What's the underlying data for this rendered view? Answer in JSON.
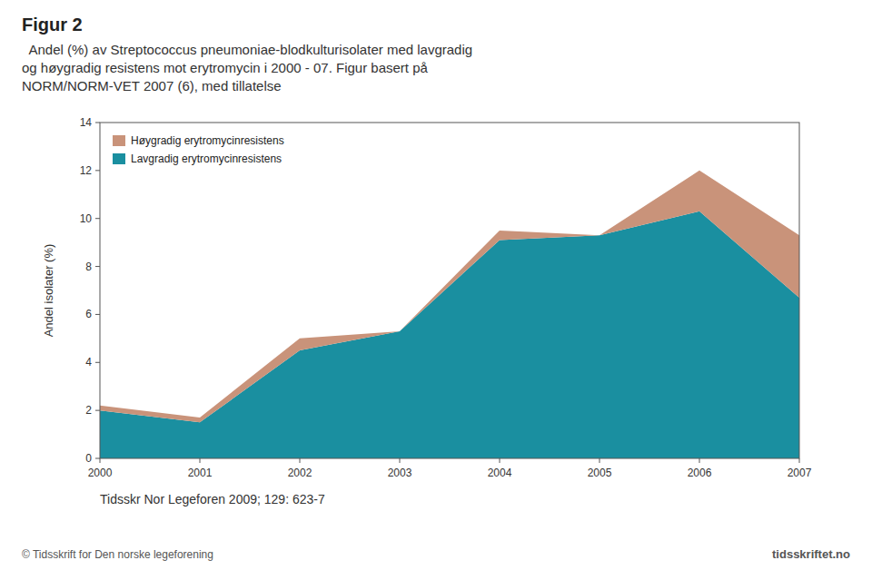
{
  "chart_data": {
    "type": "area",
    "stacked": true,
    "title": "Figur 2",
    "subtitle": [
      "  Andel (%) av Streptococcus pneumoniae-blodkulturisolater med lavgradig",
      "og høygradig resistens mot erytromycin i 2000 - 07. Figur basert på",
      "NORM/NORM-VET 2007 (6), med tillatelse"
    ],
    "y_label": "Andel isolater (%)",
    "x": [
      2000,
      2001,
      2002,
      2003,
      2004,
      2005,
      2006,
      2007
    ],
    "series": [
      {
        "name": "Lavgradig erytromycinresistens",
        "color": "#1a8fa0",
        "values": [
          2.0,
          1.5,
          4.5,
          5.3,
          9.1,
          9.3,
          10.3,
          6.7
        ]
      },
      {
        "name": "Høygradig erytromycinresistens",
        "color": "#c9937a",
        "values": [
          0.2,
          0.2,
          0.5,
          0.0,
          0.4,
          0.0,
          1.7,
          2.6
        ]
      }
    ],
    "xlim": [
      2000,
      2007
    ],
    "xticks": [
      2000,
      2001,
      2002,
      2003,
      2004,
      2005,
      2006,
      2007
    ],
    "ylim": [
      0,
      14
    ],
    "yticks": [
      0,
      2,
      4,
      6,
      8,
      10,
      12,
      14
    ],
    "grid": false,
    "legend": "upper left",
    "annotations": [
      "Tidsskr Nor Legeforen 2009; 129: 623-7",
      "© Tidsskrift for Den norske legeforening",
      "tidsskriftet.no"
    ]
  }
}
